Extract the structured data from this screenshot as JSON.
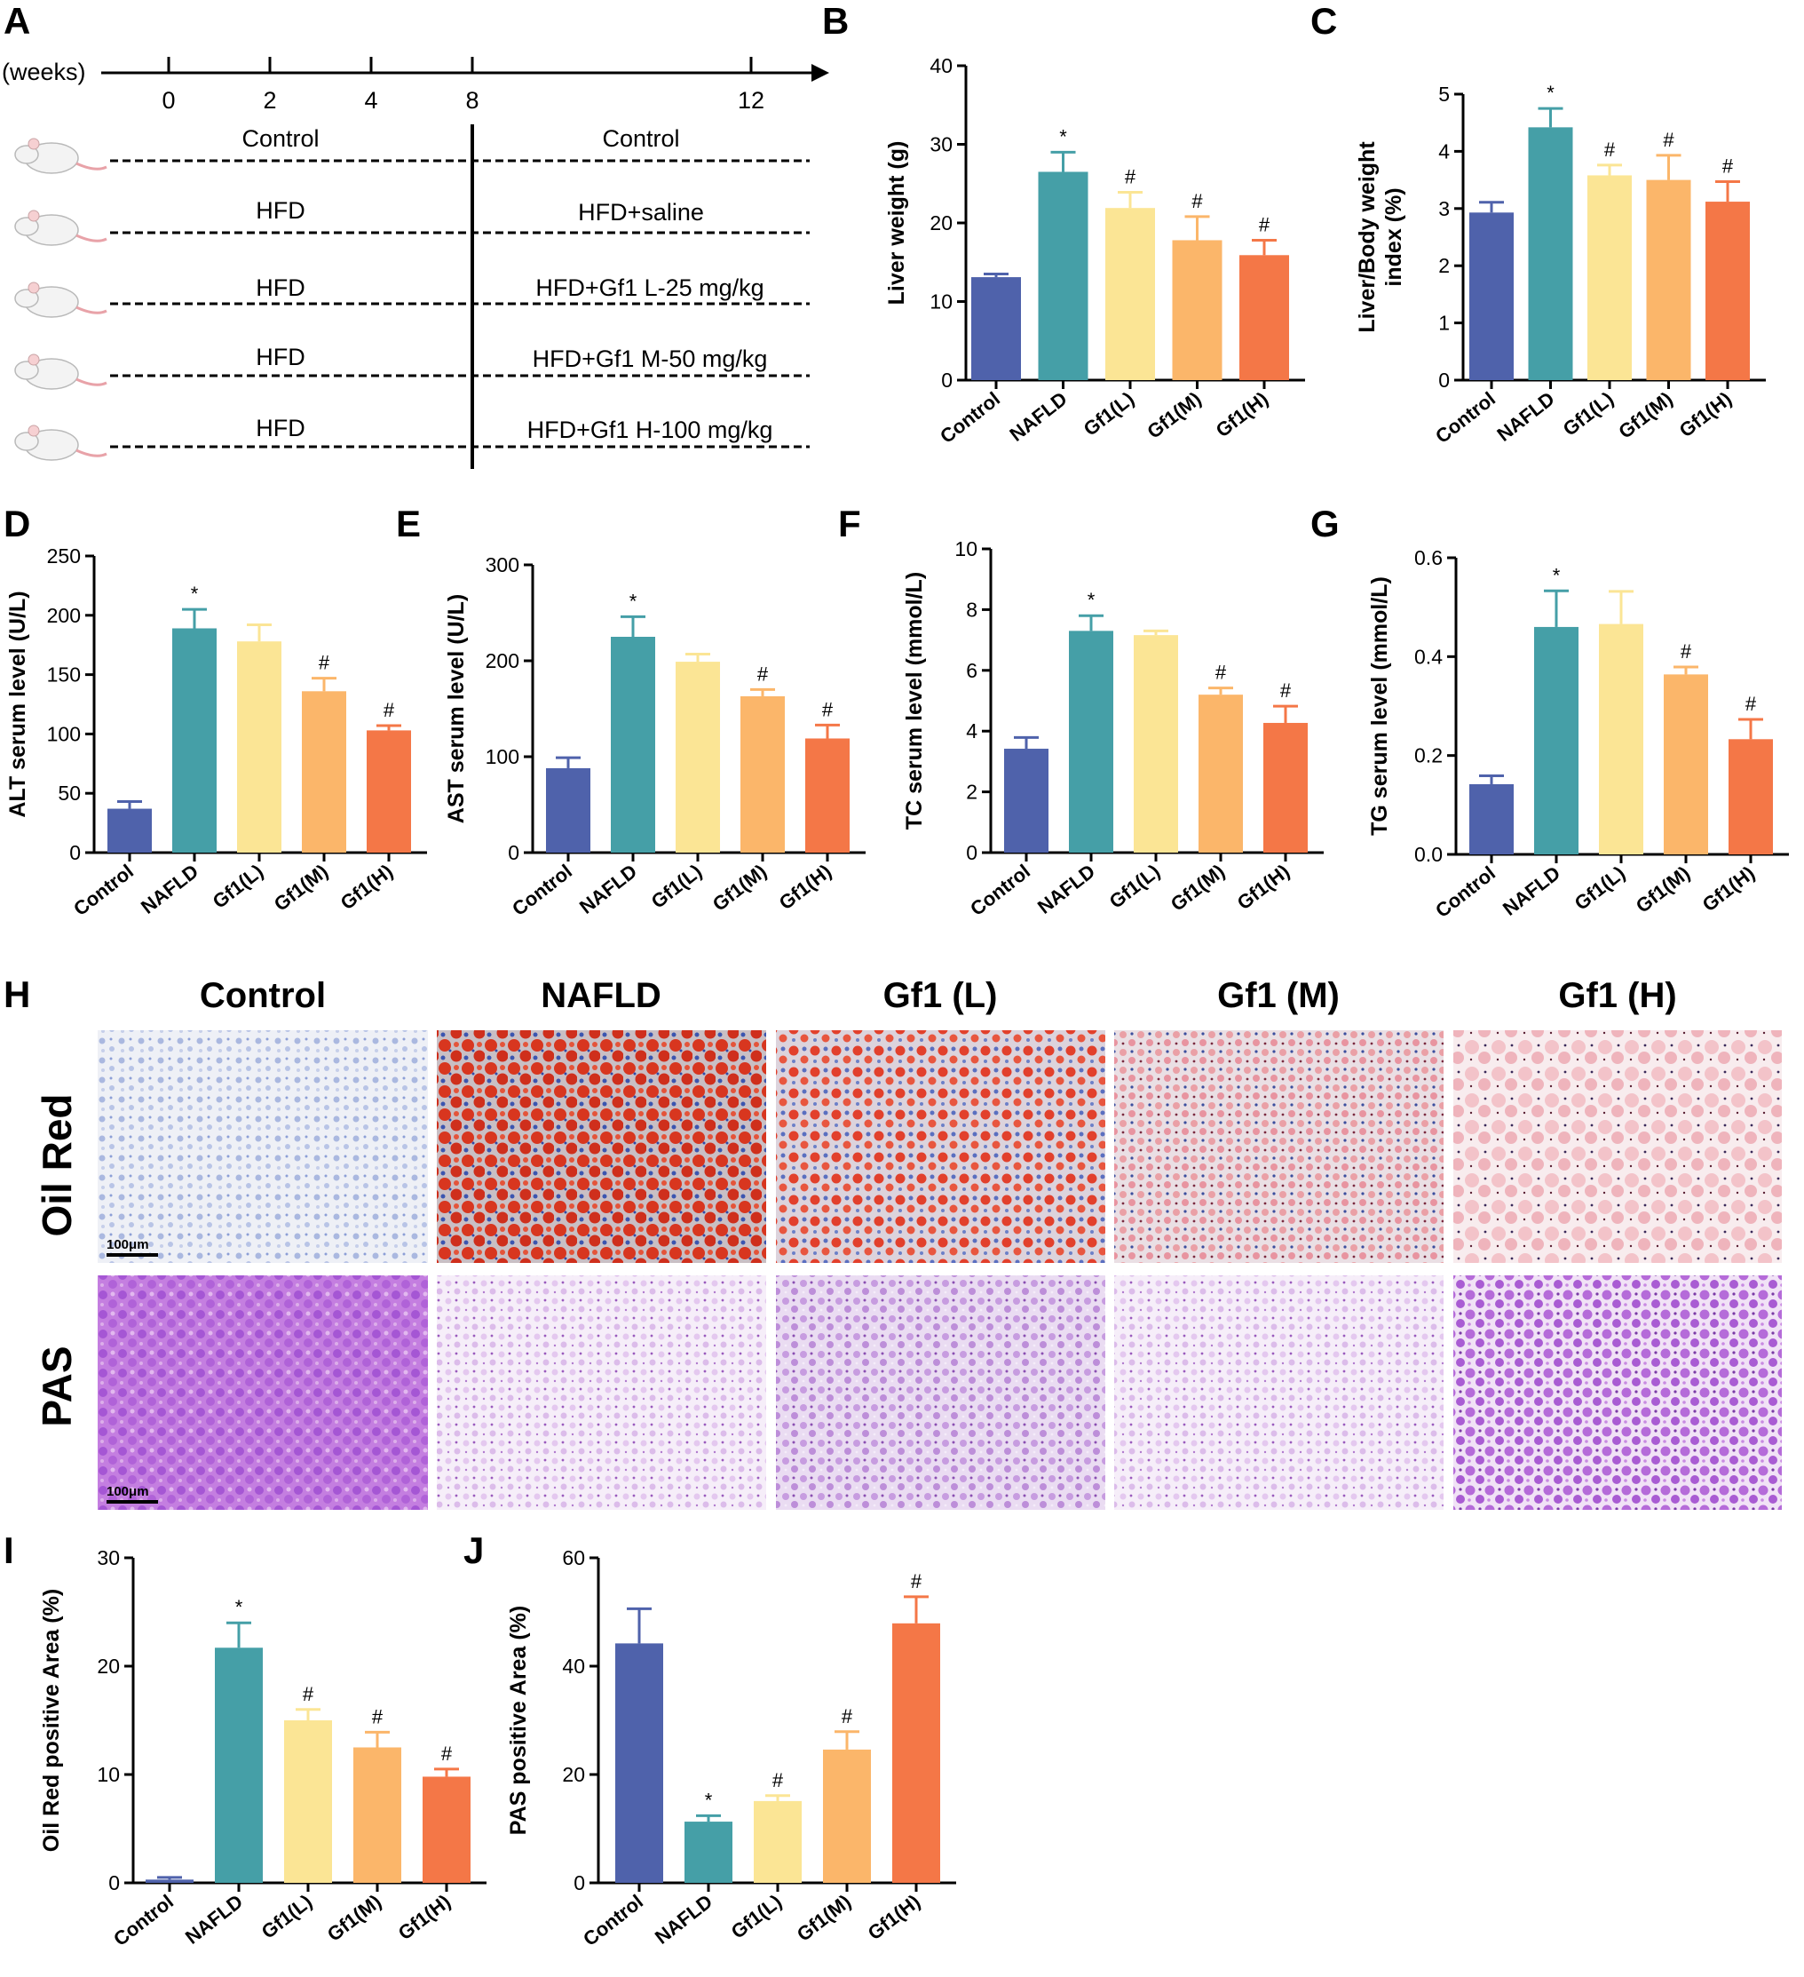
{
  "colors": {
    "Control": "#4f62ab",
    "NAFLD": "#459fa7",
    "Gf1(L)": "#fbe595",
    "Gf1(M)": "#fbb66a",
    "Gf1(H)": "#f47747"
  },
  "panel_a": {
    "letter": "A",
    "unit_label": "(weeks)",
    "ticks": [
      "0",
      "2",
      "4",
      "8",
      "12"
    ],
    "rows": [
      {
        "before": "Control",
        "after": "Control"
      },
      {
        "before": "HFD",
        "after": "HFD+saline"
      },
      {
        "before": "HFD",
        "after": "HFD+Gf1 L-25 mg/kg"
      },
      {
        "before": "HFD",
        "after": "HFD+Gf1 M-50 mg/kg"
      },
      {
        "before": "HFD",
        "after": "HFD+Gf1 H-100 mg/kg"
      }
    ]
  },
  "panel_h": {
    "letter": "H",
    "column_headers": [
      "Control",
      "NAFLD",
      "Gf1 (L)",
      "Gf1 (M)",
      "Gf1 (H)"
    ],
    "row_headers": [
      "Oil Red",
      "PAS"
    ],
    "scale_bar": "100μm"
  },
  "chart_data": [
    {
      "id": "B",
      "type": "bar",
      "title": "",
      "categories": [
        "Control",
        "NAFLD",
        "Gf1(L)",
        "Gf1(M)",
        "Gf1(H)"
      ],
      "values": [
        13.1,
        26.5,
        21.9,
        17.8,
        15.9
      ],
      "errors": [
        0.4,
        2.5,
        2.0,
        3.0,
        1.9
      ],
      "significance": [
        "",
        "*",
        "#",
        "#",
        "#"
      ],
      "ylabel": "Liver weight (g)",
      "ylabel2": "",
      "ylim": [
        0,
        40
      ],
      "yticks": [
        "0",
        "10",
        "20",
        "30",
        "40"
      ]
    },
    {
      "id": "C",
      "type": "bar",
      "title": "",
      "categories": [
        "Control",
        "NAFLD",
        "Gf1(L)",
        "Gf1(M)",
        "Gf1(H)"
      ],
      "values": [
        2.93,
        4.42,
        3.58,
        3.5,
        3.12
      ],
      "errors": [
        0.18,
        0.33,
        0.18,
        0.43,
        0.35
      ],
      "significance": [
        "",
        "*",
        "#",
        "#",
        "#"
      ],
      "ylabel": "Liver/Body weight",
      "ylabel2": "index (%)",
      "ylim": [
        0,
        5
      ],
      "yticks": [
        "0",
        "1",
        "2",
        "3",
        "4",
        "5"
      ]
    },
    {
      "id": "D",
      "type": "bar",
      "title": "",
      "categories": [
        "Control",
        "NAFLD",
        "Gf1(L)",
        "Gf1(M)",
        "Gf1(H)"
      ],
      "values": [
        37,
        189,
        178,
        136,
        103
      ],
      "errors": [
        6,
        16,
        14,
        11,
        4
      ],
      "significance": [
        "",
        "*",
        "",
        "#",
        "#"
      ],
      "ylabel": "ALT serum level (U/L)",
      "ylabel2": "",
      "ylim": [
        0,
        250
      ],
      "yticks": [
        "0",
        "50",
        "100",
        "150",
        "200",
        "250"
      ]
    },
    {
      "id": "E",
      "type": "bar",
      "title": "",
      "categories": [
        "Control",
        "NAFLD",
        "Gf1(L)",
        "Gf1(M)",
        "Gf1(H)"
      ],
      "values": [
        88,
        225,
        199,
        163,
        119
      ],
      "errors": [
        11,
        21,
        8,
        7,
        14
      ],
      "significance": [
        "",
        "*",
        "",
        "#",
        "#"
      ],
      "ylabel": "AST serum level (U/L)",
      "ylabel2": "",
      "ylim": [
        0,
        300
      ],
      "yticks": [
        "0",
        "100",
        "200",
        "300"
      ]
    },
    {
      "id": "F",
      "type": "bar",
      "title": "",
      "categories": [
        "Control",
        "NAFLD",
        "Gf1(L)",
        "Gf1(M)",
        "Gf1(H)"
      ],
      "values": [
        3.42,
        7.3,
        7.16,
        5.2,
        4.27
      ],
      "errors": [
        0.37,
        0.5,
        0.14,
        0.22,
        0.55
      ],
      "significance": [
        "",
        "*",
        "",
        "#",
        "#"
      ],
      "ylabel": "TC serum level (mmol/L)",
      "ylabel2": "",
      "ylim": [
        0,
        10
      ],
      "yticks": [
        "0",
        "2",
        "4",
        "6",
        "8",
        "10"
      ]
    },
    {
      "id": "G",
      "type": "bar",
      "title": "",
      "categories": [
        "Control",
        "NAFLD",
        "Gf1(L)",
        "Gf1(M)",
        "Gf1(H)"
      ],
      "values": [
        0.142,
        0.46,
        0.466,
        0.364,
        0.233
      ],
      "errors": [
        0.017,
        0.073,
        0.066,
        0.015,
        0.04
      ],
      "significance": [
        "",
        "*",
        "",
        "#",
        "#"
      ],
      "ylabel": "TG serum level (mmol/L)",
      "ylabel2": "",
      "ylim": [
        0,
        0.6
      ],
      "yticks": [
        "0.0",
        "0.2",
        "0.4",
        "0.6"
      ]
    },
    {
      "id": "I",
      "type": "bar",
      "title": "",
      "categories": [
        "Control",
        "NAFLD",
        "Gf1(L)",
        "Gf1(M)",
        "Gf1(H)"
      ],
      "values": [
        0.3,
        21.7,
        15.0,
        12.5,
        9.8
      ],
      "errors": [
        0.2,
        2.3,
        1.0,
        1.4,
        0.7
      ],
      "significance": [
        "",
        "*",
        "#",
        "#",
        "#"
      ],
      "ylabel": "Oil Red positive Area (%)",
      "ylabel2": "",
      "ylim": [
        0,
        30
      ],
      "yticks": [
        "0",
        "10",
        "20",
        "30"
      ]
    },
    {
      "id": "J",
      "type": "bar",
      "title": "",
      "categories": [
        "Control",
        "NAFLD",
        "Gf1(L)",
        "Gf1(M)",
        "Gf1(H)"
      ],
      "values": [
        44.2,
        11.3,
        15.1,
        24.6,
        47.9
      ],
      "errors": [
        6.4,
        1.1,
        1.0,
        3.3,
        4.9
      ],
      "significance": [
        "",
        "*",
        "#",
        "#",
        "#"
      ],
      "ylabel": "PAS positive Area (%)",
      "ylabel2": "",
      "ylim": [
        0,
        60
      ],
      "yticks": [
        "0",
        "20",
        "40",
        "60"
      ]
    }
  ]
}
